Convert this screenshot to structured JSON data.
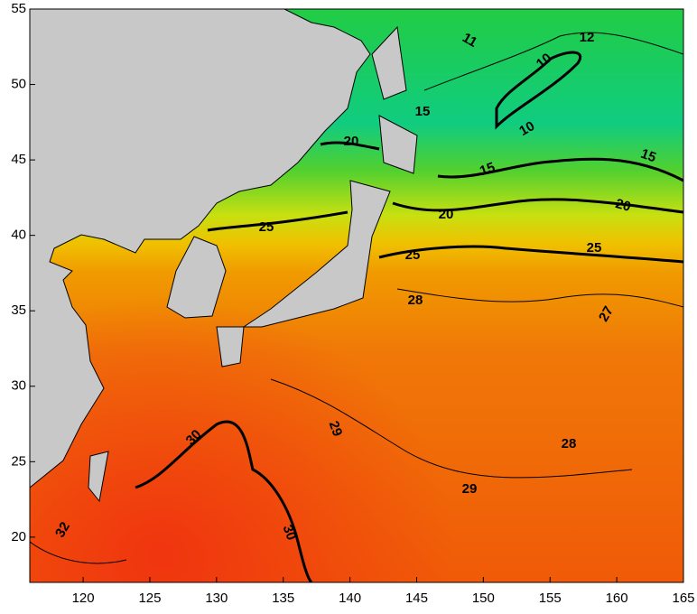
{
  "map": {
    "type": "contour",
    "xlim": [
      116,
      165
    ],
    "xticks": [
      120,
      125,
      130,
      135,
      140,
      145,
      150,
      155,
      160,
      165
    ],
    "ylim": [
      17,
      55
    ],
    "yticks": [
      20,
      25,
      30,
      35,
      40,
      45,
      50,
      55
    ],
    "contour_labels": [
      11,
      12,
      10,
      10,
      15,
      15,
      15,
      20,
      20,
      20,
      25,
      25,
      25,
      28,
      27,
      28,
      29,
      29,
      30,
      30,
      32
    ]
  }
}
